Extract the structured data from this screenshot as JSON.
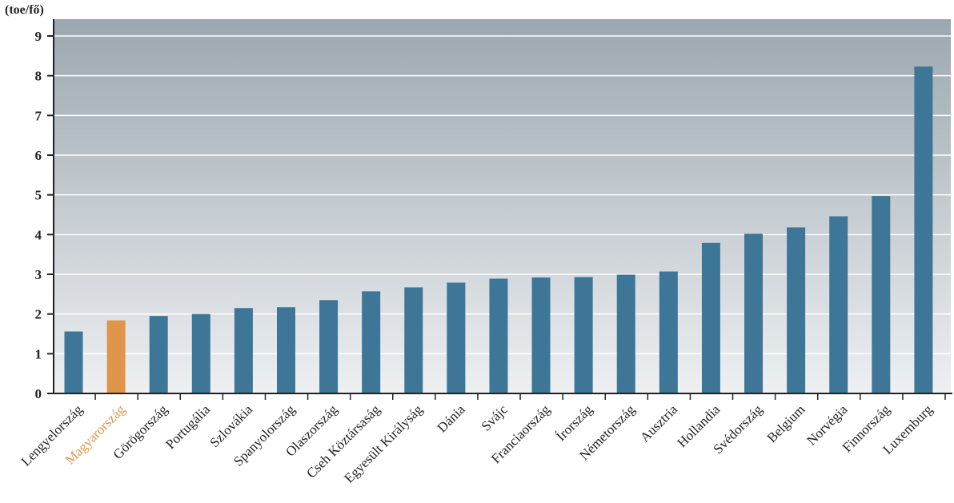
{
  "chart_data": {
    "type": "bar",
    "title": "",
    "ylabel": "(toe/fő)",
    "xlabel": "",
    "ylim": [
      0,
      9
    ],
    "yticks": [
      0,
      1,
      2,
      3,
      4,
      5,
      6,
      7,
      8,
      9
    ],
    "grid": true,
    "categories": [
      "Lengyelország",
      "Magyarország",
      "Görögország",
      "Portugália",
      "Szlovákia",
      "Spanyolország",
      "Olaszország",
      "Cseh Köztársaság",
      "Egyesült Királyság",
      "Dánia",
      "Svájc",
      "Franciaország",
      "Írország",
      "Németország",
      "Ausztria",
      "Hollandia",
      "Svédország",
      "Belgium",
      "Norvégia",
      "Finnország",
      "Luxemburg"
    ],
    "values": [
      1.56,
      1.84,
      1.95,
      2.0,
      2.15,
      2.17,
      2.35,
      2.57,
      2.67,
      2.79,
      2.89,
      2.92,
      2.93,
      2.99,
      3.07,
      3.79,
      4.02,
      4.18,
      4.46,
      4.97,
      8.23
    ],
    "highlight_category": "Magyarország",
    "colors": {
      "bar": "#3e7697",
      "highlight": "#e0964a",
      "highlight_label": "#e0964a",
      "label": "#222222",
      "background_top": "#9ba7b0",
      "background_bottom": "#eef0f2",
      "grid": "#ffffff",
      "axis": "#222222"
    }
  }
}
